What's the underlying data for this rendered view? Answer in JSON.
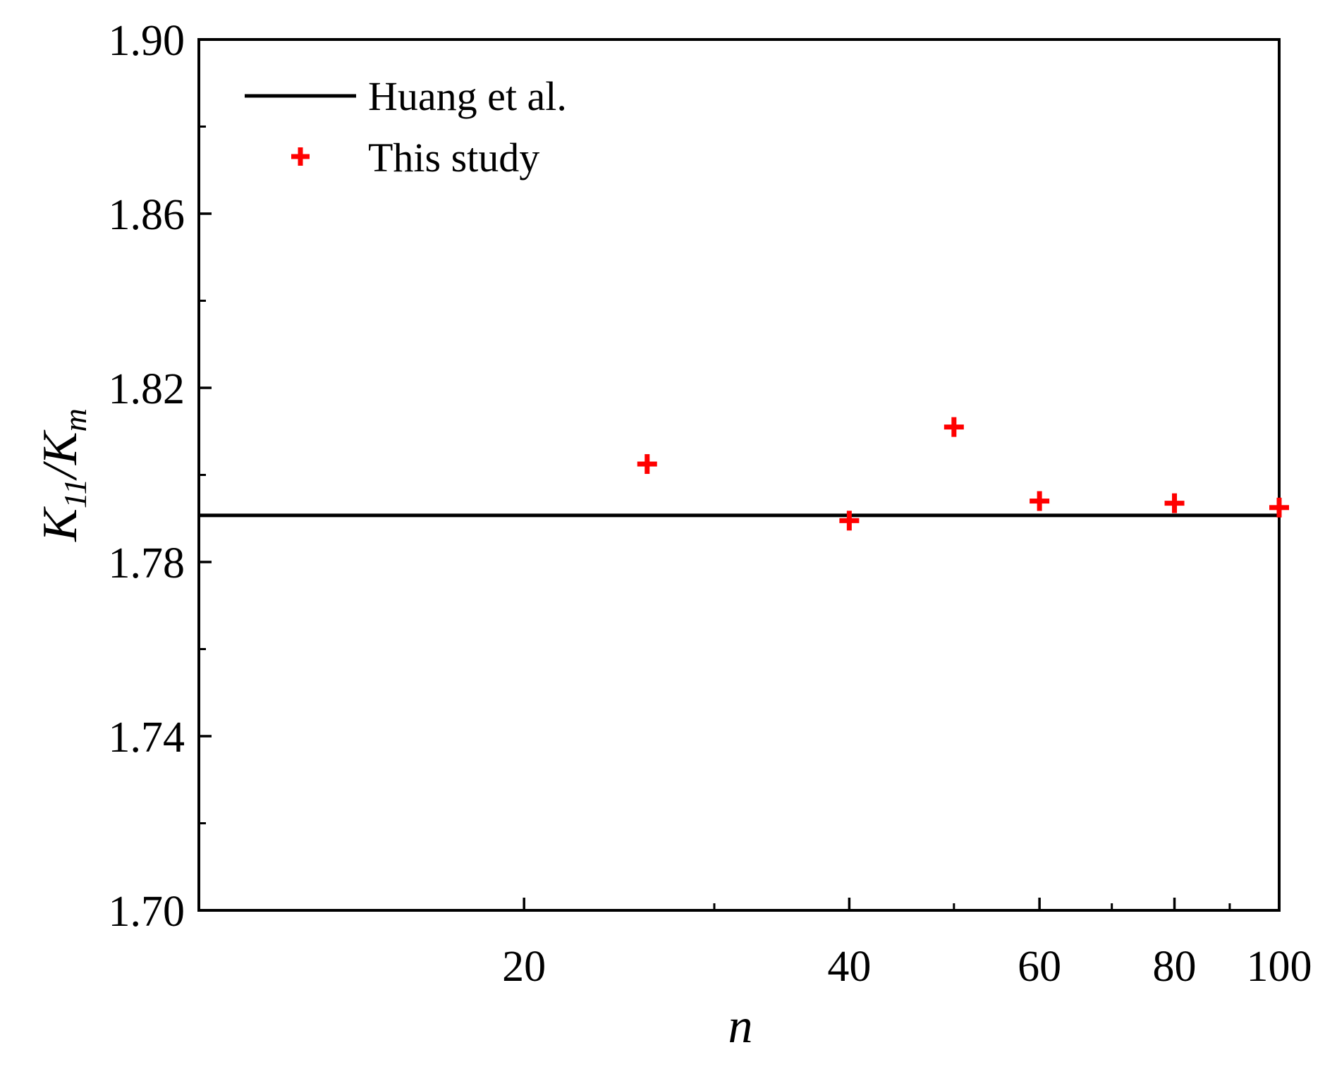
{
  "chart_data": {
    "type": "scatter",
    "title": "",
    "xlabel": "n",
    "ylabel_main_1": "K",
    "ylabel_sub_1": "11",
    "ylabel_slash": "/",
    "ylabel_main_2": "K",
    "ylabel_sub_2": "m",
    "x_scale": "log",
    "xlim": [
      10,
      100
    ],
    "ylim": [
      1.7,
      1.9
    ],
    "x_ticks": [
      20,
      40,
      60,
      80,
      100
    ],
    "x_tick_labels": [
      "20",
      "40",
      "60",
      "80",
      "100"
    ],
    "x_minor_ticks": [
      30,
      50,
      70,
      90
    ],
    "y_ticks": [
      1.7,
      1.74,
      1.78,
      1.82,
      1.86,
      1.9
    ],
    "y_tick_labels": [
      "1.70",
      "1.74",
      "1.78",
      "1.82",
      "1.86",
      "1.90"
    ],
    "y_minor_ticks": [
      1.72,
      1.76,
      1.8,
      1.84,
      1.88
    ],
    "grid": false,
    "legend_position": "top-left",
    "series": [
      {
        "name": "Huang et al.",
        "kind": "line",
        "color": "#000000",
        "y": 1.7907
      },
      {
        "name": "This study",
        "kind": "marker",
        "marker": "plus",
        "color": "#ff0000",
        "x": [
          26,
          40,
          50,
          60,
          80,
          100
        ],
        "y": [
          1.8025,
          1.7895,
          1.811,
          1.794,
          1.7935,
          1.7925
        ]
      }
    ]
  }
}
